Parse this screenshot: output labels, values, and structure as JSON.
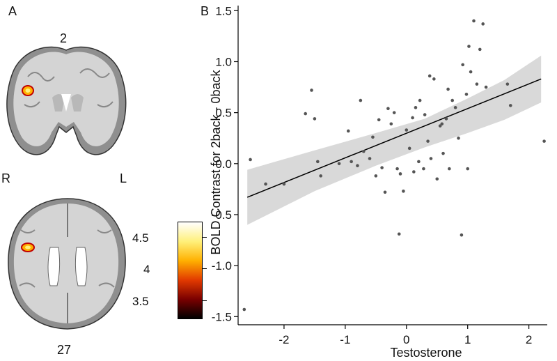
{
  "panels": {
    "a_label": "A",
    "b_label": "B",
    "coronal_slice": "2",
    "axial_slice": "27",
    "right_label": "R",
    "left_label": "L",
    "colorbar": {
      "ticks": [
        "4.5",
        "4",
        "3.5"
      ],
      "colors": [
        "#ffffff",
        "#fff07a",
        "#ffb000",
        "#e23a00",
        "#7a0000",
        "#000000"
      ]
    }
  },
  "chart_data": {
    "type": "scatter",
    "xlabel": "Testosterone",
    "ylabel": "BOLD Contrast for 2back - 0back",
    "xlim": [
      -2.75,
      2.3
    ],
    "ylim": [
      -1.58,
      1.55
    ],
    "xticks": [
      "-2",
      "-1",
      "0",
      "1",
      "2"
    ],
    "xtick_values": [
      -2,
      -1,
      0,
      1,
      2
    ],
    "yticks": [
      "1.5",
      "1.0",
      "0.5",
      "0.0",
      "-0.5",
      "-1.0",
      "-1.5"
    ],
    "ytick_values": [
      1.5,
      1.0,
      0.5,
      0.0,
      -0.5,
      -1.0,
      -1.5
    ],
    "fit_line": {
      "x": [
        -2.6,
        2.2
      ],
      "y": [
        -0.33,
        0.83
      ]
    },
    "confidence_band": {
      "x": [
        -2.6,
        -1.5,
        -0.5,
        0.3,
        1.0,
        1.6,
        2.2
      ],
      "upper": [
        -0.06,
        0.13,
        0.3,
        0.44,
        0.64,
        0.82,
        1.06
      ],
      "lower": [
        -0.6,
        -0.27,
        -0.02,
        0.16,
        0.3,
        0.43,
        0.6
      ]
    },
    "colors": {
      "points": "#555555",
      "line": "#000000",
      "band": "#d9d9d9"
    },
    "points": [
      {
        "x": -2.65,
        "y": -1.43
      },
      {
        "x": -2.55,
        "y": 0.04
      },
      {
        "x": -2.3,
        "y": -0.2
      },
      {
        "x": -2.0,
        "y": -0.2
      },
      {
        "x": -1.65,
        "y": 0.49
      },
      {
        "x": -1.55,
        "y": 0.72
      },
      {
        "x": -1.5,
        "y": 0.44
      },
      {
        "x": -1.45,
        "y": 0.02
      },
      {
        "x": -1.4,
        "y": -0.12
      },
      {
        "x": -1.1,
        "y": 0.0
      },
      {
        "x": -0.95,
        "y": 0.32
      },
      {
        "x": -0.9,
        "y": 0.02
      },
      {
        "x": -0.8,
        "y": -0.02
      },
      {
        "x": -0.75,
        "y": 0.62
      },
      {
        "x": -0.7,
        "y": 0.12
      },
      {
        "x": -0.6,
        "y": 0.05
      },
      {
        "x": -0.55,
        "y": 0.26
      },
      {
        "x": -0.5,
        "y": -0.12
      },
      {
        "x": -0.45,
        "y": 0.43
      },
      {
        "x": -0.4,
        "y": -0.04
      },
      {
        "x": -0.35,
        "y": -0.28
      },
      {
        "x": -0.3,
        "y": 0.54
      },
      {
        "x": -0.25,
        "y": 0.39
      },
      {
        "x": -0.2,
        "y": 0.5
      },
      {
        "x": -0.15,
        "y": -0.05
      },
      {
        "x": -0.12,
        "y": -0.69
      },
      {
        "x": -0.1,
        "y": -0.1
      },
      {
        "x": -0.05,
        "y": -0.27
      },
      {
        "x": 0.0,
        "y": 0.33
      },
      {
        "x": 0.05,
        "y": 0.15
      },
      {
        "x": 0.1,
        "y": 0.45
      },
      {
        "x": 0.15,
        "y": 0.55
      },
      {
        "x": 0.2,
        "y": 0.02
      },
      {
        "x": 0.22,
        "y": 0.62
      },
      {
        "x": 0.28,
        "y": -0.05
      },
      {
        "x": 0.3,
        "y": 0.48
      },
      {
        "x": 0.35,
        "y": 0.22
      },
      {
        "x": 0.38,
        "y": 0.86
      },
      {
        "x": 0.4,
        "y": 0.05
      },
      {
        "x": 0.45,
        "y": 0.83
      },
      {
        "x": 0.5,
        "y": -0.15
      },
      {
        "x": 0.55,
        "y": 0.37
      },
      {
        "x": 0.6,
        "y": 0.1
      },
      {
        "x": 0.65,
        "y": 0.44
      },
      {
        "x": 0.68,
        "y": 0.73
      },
      {
        "x": 0.7,
        "y": -0.05
      },
      {
        "x": 0.8,
        "y": 0.55
      },
      {
        "x": 0.85,
        "y": 0.25
      },
      {
        "x": 0.9,
        "y": -0.7
      },
      {
        "x": 0.92,
        "y": 0.97
      },
      {
        "x": 0.98,
        "y": 0.68
      },
      {
        "x": 1.0,
        "y": -0.05
      },
      {
        "x": 1.02,
        "y": 1.15
      },
      {
        "x": 1.05,
        "y": 0.9
      },
      {
        "x": 1.1,
        "y": 1.4
      },
      {
        "x": 1.15,
        "y": 0.78
      },
      {
        "x": 1.2,
        "y": 1.12
      },
      {
        "x": 1.25,
        "y": 1.37
      },
      {
        "x": 1.3,
        "y": 0.75
      },
      {
        "x": 1.65,
        "y": 0.78
      },
      {
        "x": 1.7,
        "y": 0.57
      },
      {
        "x": 2.25,
        "y": 0.22
      },
      {
        "x": 0.75,
        "y": 0.62
      },
      {
        "x": 0.58,
        "y": 0.39
      },
      {
        "x": 0.12,
        "y": -0.08
      }
    ]
  }
}
